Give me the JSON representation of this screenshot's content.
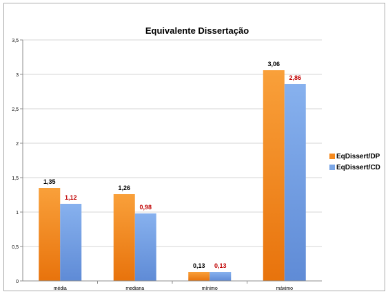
{
  "chart_data": {
    "type": "bar",
    "title": "Equivalente Dissertação",
    "categories": [
      "média",
      "mediana",
      "mínimo",
      "máximo"
    ],
    "series": [
      {
        "name": "EqDissert/DP",
        "values": [
          1.35,
          1.26,
          0.13,
          3.06
        ],
        "labels": [
          "1,35",
          "1,26",
          "0,13",
          "3,06"
        ],
        "color": "#f58a1f",
        "label_color": "#000000"
      },
      {
        "name": "EqDissert/CD",
        "values": [
          1.12,
          0.98,
          0.13,
          2.86
        ],
        "labels": [
          "1,12",
          "0,98",
          "0,13",
          "2,86"
        ],
        "color": "#7aa6e6",
        "label_color": "#c00000"
      }
    ],
    "ylim": [
      0,
      3.5
    ],
    "yticks": [
      0,
      0.5,
      1,
      1.5,
      2,
      2.5,
      3,
      3.5
    ],
    "ytick_labels": [
      "0",
      "0,5",
      "1",
      "1,5",
      "2",
      "2,5",
      "3",
      "3,5"
    ],
    "xlabel": "",
    "ylabel": "",
    "grid": true,
    "legend_position": "right"
  }
}
